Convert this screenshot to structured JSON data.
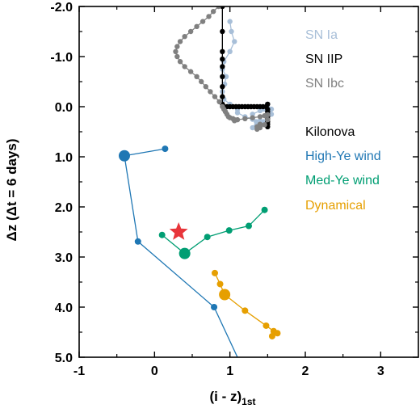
{
  "chart_data": {
    "type": "scatter",
    "xlabel": "(i - z)",
    "xlabel_subscript": "1st",
    "ylabel": "Δz (Δt = 6 days)",
    "xlim": [
      -1,
      3.5
    ],
    "ylim": [
      -2.0,
      5.0
    ],
    "y_inverted": true,
    "x_ticks": [
      -1,
      0,
      1,
      2,
      3
    ],
    "x_tick_labels": [
      "-1",
      "0",
      "1",
      "2",
      "3"
    ],
    "y_ticks": [
      -2,
      -1,
      0,
      1,
      2,
      3,
      4,
      5
    ],
    "y_tick_labels": [
      "-2.0",
      "-1.0",
      "0.0",
      "1.0",
      "2.0",
      "3.0",
      "4.0",
      "5.0"
    ],
    "grid": false,
    "legend": [
      {
        "label": "SN Ia",
        "color": "#a8bfd8"
      },
      {
        "label": "SN IIP",
        "color": "#000000"
      },
      {
        "label": "SN Ibc",
        "color": "#808080"
      },
      {
        "label": "Kilonova",
        "color": "#000000"
      },
      {
        "label": "High-Ye wind",
        "color": "#1f77b4"
      },
      {
        "label": "Med-Ye wind",
        "color": "#009e73"
      },
      {
        "label": "Dynamical",
        "color": "#e69f00"
      }
    ],
    "series": [
      {
        "name": "SN Ia",
        "color": "#a8bfd8",
        "line": true,
        "x": [
          1.0,
          1.02,
          1.06,
          1.0,
          0.92,
          0.9,
          0.95,
          0.93,
          0.9,
          0.92,
          1.0,
          1.08,
          1.1,
          1.1,
          1.2,
          1.3,
          1.4,
          1.45,
          1.45,
          1.35,
          1.3,
          1.3,
          1.4,
          1.45,
          1.5,
          1.5,
          1.45,
          1.35,
          1.3,
          1.35,
          1.4,
          1.45,
          1.5,
          1.55,
          1.55,
          1.5
        ],
        "y": [
          -1.7,
          -1.5,
          -1.3,
          -1.1,
          -0.9,
          -0.75,
          -0.6,
          -0.45,
          -0.3,
          -0.15,
          -0.05,
          0.0,
          0.05,
          0.12,
          0.2,
          0.25,
          0.28,
          0.3,
          0.32,
          0.3,
          0.25,
          0.15,
          0.08,
          0.05,
          0.1,
          0.2,
          0.3,
          0.38,
          0.42,
          0.4,
          0.35,
          0.3,
          0.25,
          0.15,
          0.05,
          -0.05
        ]
      },
      {
        "name": "SN IIP",
        "color": "#000000",
        "line": true,
        "x": [
          0.9,
          0.9,
          0.9,
          0.9,
          0.9,
          0.9,
          0.9,
          0.9,
          0.9,
          0.92,
          0.96,
          1.0,
          1.04,
          1.08,
          1.12,
          1.16,
          1.2,
          1.24,
          1.28,
          1.32,
          1.36,
          1.4,
          1.44,
          1.48,
          1.5,
          1.5,
          1.5,
          1.5,
          1.5,
          1.5,
          1.5,
          1.5,
          1.5
        ],
        "y": [
          -2.0,
          -1.5,
          -1.1,
          -0.95,
          -0.8,
          -0.6,
          -0.4,
          -0.2,
          -0.05,
          0.0,
          0.0,
          0.0,
          0.0,
          0.0,
          0.0,
          0.0,
          0.0,
          0.0,
          0.0,
          0.0,
          0.0,
          0.0,
          0.0,
          0.0,
          -0.05,
          0.05,
          0.1,
          0.15,
          0.2,
          0.25,
          0.3,
          0.35,
          0.4
        ]
      },
      {
        "name": "SN Ibc",
        "color": "#808080",
        "line": true,
        "x": [
          0.85,
          0.78,
          0.72,
          0.64,
          0.56,
          0.48,
          0.4,
          0.34,
          0.3,
          0.28,
          0.3,
          0.34,
          0.4,
          0.48,
          0.56,
          0.62,
          0.68,
          0.74,
          0.8,
          0.86,
          0.9,
          0.92,
          0.94,
          0.96,
          0.98,
          1.0,
          1.04,
          1.06,
          1.06,
          1.1,
          1.2,
          1.3,
          1.4,
          1.46,
          1.5,
          1.5,
          1.46,
          1.4,
          1.36,
          1.36,
          1.4
        ],
        "y": [
          -2.0,
          -1.9,
          -1.8,
          -1.7,
          -1.6,
          -1.5,
          -1.4,
          -1.3,
          -1.2,
          -1.1,
          -1.0,
          -0.9,
          -0.8,
          -0.7,
          -0.6,
          -0.5,
          -0.4,
          -0.3,
          -0.2,
          -0.1,
          0.0,
          0.05,
          0.1,
          0.15,
          0.2,
          0.22,
          0.24,
          0.26,
          0.28,
          0.26,
          0.24,
          0.22,
          0.2,
          0.18,
          0.16,
          0.26,
          0.36,
          0.42,
          0.45,
          0.4,
          0.35
        ]
      },
      {
        "name": "High-Ye wind",
        "color": "#1f77b4",
        "line": true,
        "x": [
          0.14,
          -0.4,
          -0.22,
          0.79,
          1.1
        ],
        "y": [
          0.84,
          0.98,
          2.69,
          4.0,
          5.0
        ],
        "marker_sizes": [
          4,
          7,
          4,
          4,
          4
        ],
        "clipped_last": true
      },
      {
        "name": "Med-Ye wind",
        "color": "#009e73",
        "line": true,
        "x": [
          1.46,
          1.25,
          0.99,
          0.7,
          0.4,
          0.1
        ],
        "y": [
          2.06,
          2.38,
          2.47,
          2.6,
          2.93,
          2.56
        ],
        "marker_sizes": [
          4,
          4,
          4,
          4,
          7,
          4
        ]
      },
      {
        "name": "Dynamical",
        "color": "#e69f00",
        "line": true,
        "x": [
          0.8,
          0.87,
          0.93,
          1.2,
          1.48,
          1.58,
          1.63,
          1.56
        ],
        "y": [
          3.32,
          3.54,
          3.75,
          4.07,
          4.37,
          4.48,
          4.52,
          4.58
        ],
        "marker_sizes": [
          4,
          4,
          7,
          4,
          4,
          4,
          4,
          4
        ]
      }
    ],
    "annotations": [
      {
        "type": "star",
        "x": 0.32,
        "y": 2.5,
        "color": "#e8353a"
      }
    ]
  }
}
